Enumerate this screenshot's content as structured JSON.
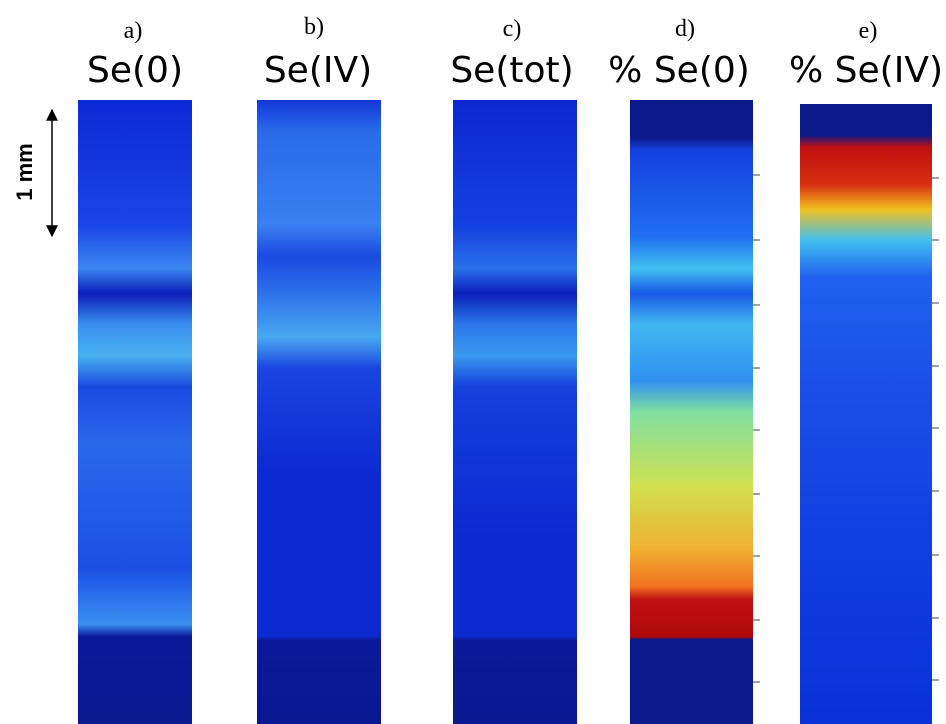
{
  "panels": [
    {
      "letter": "a)",
      "title": "Se(0)"
    },
    {
      "letter": "b)",
      "title": "Se(IV)"
    },
    {
      "letter": "c)",
      "title": "Se(tot)"
    },
    {
      "letter": "d)",
      "title": "% Se(0)"
    },
    {
      "letter": "e)",
      "title": "% Se(IV)"
    }
  ],
  "scale_bar": "1 mm"
}
